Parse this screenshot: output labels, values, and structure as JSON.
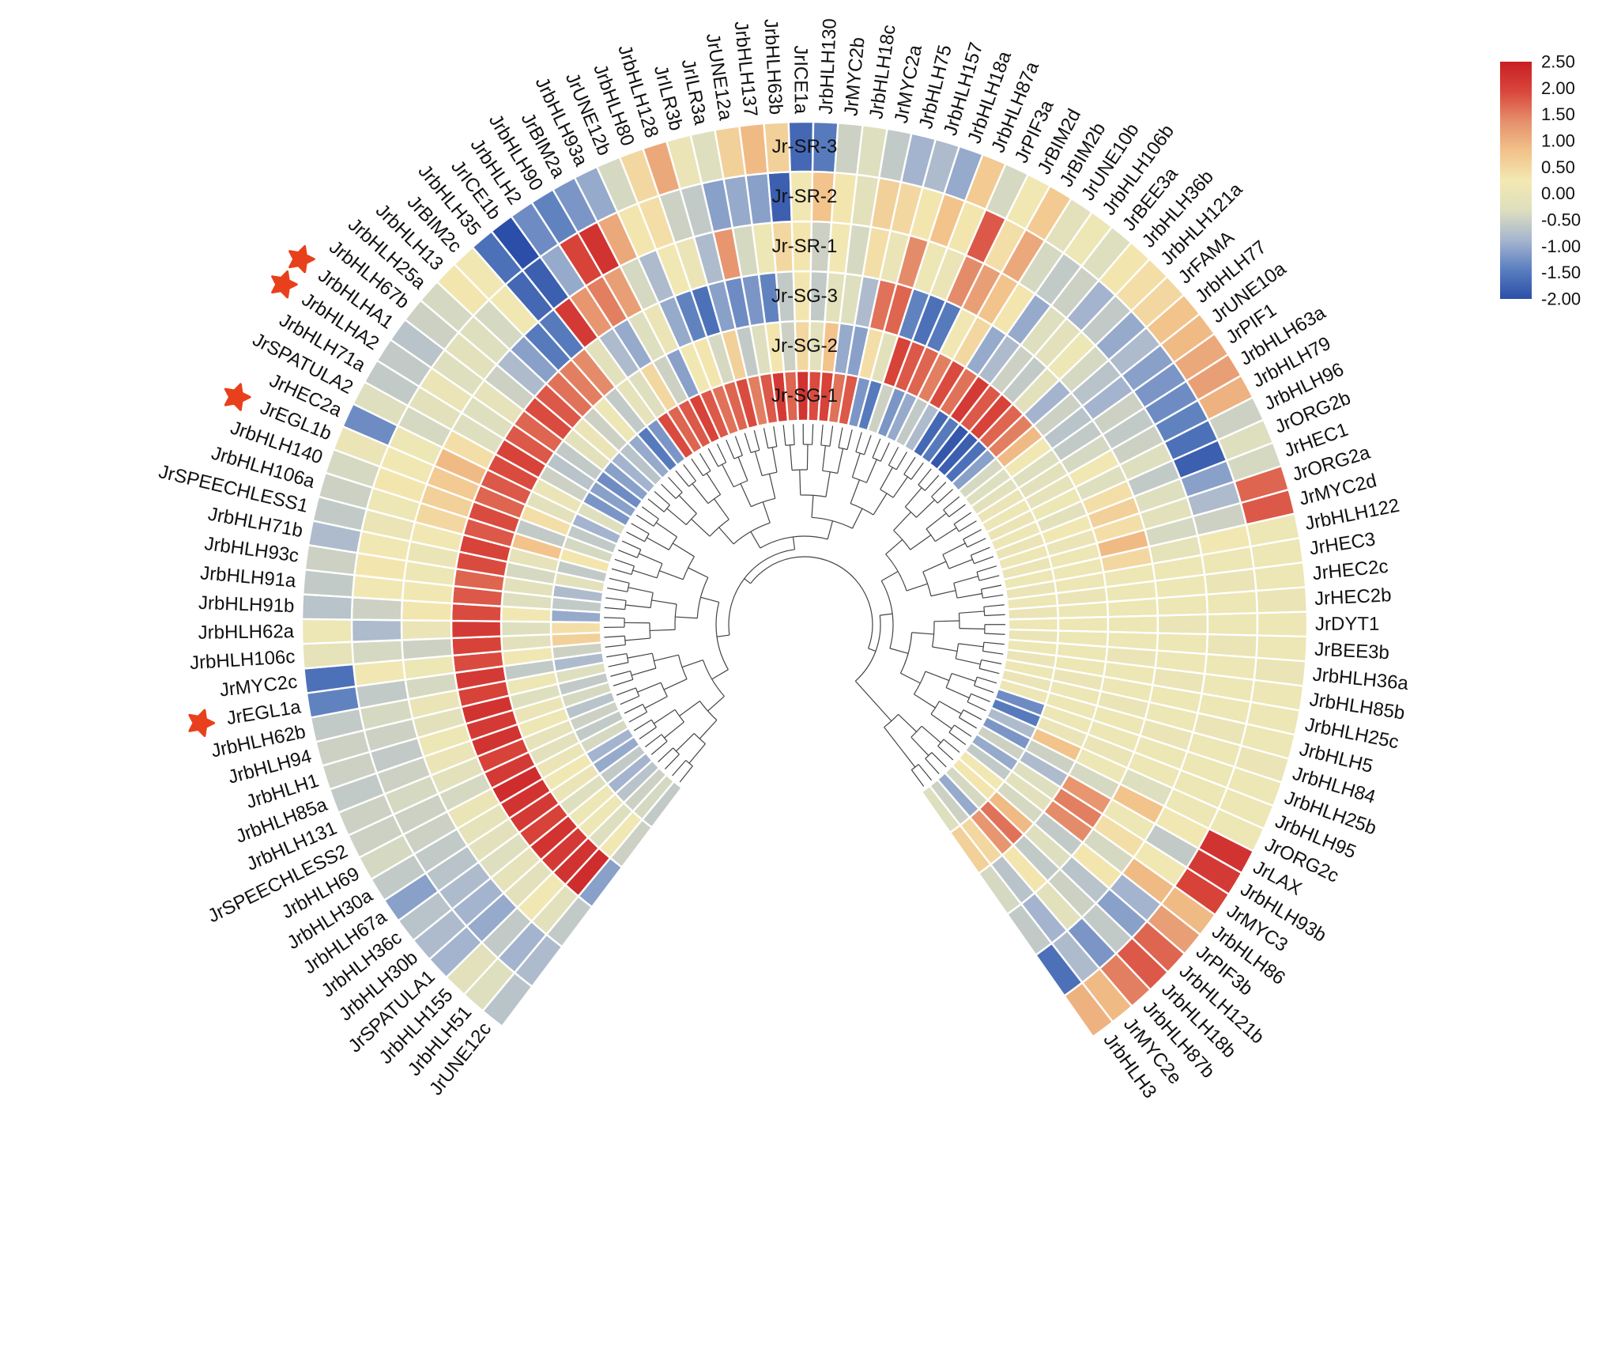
{
  "chart_data": {
    "type": "heatmap",
    "layout": "circular",
    "samples_inner_to_outer": [
      "Jr-SG-1",
      "Jr-SG-2",
      "Jr-SG-3",
      "Jr-SR-1",
      "Jr-SR-2",
      "Jr-SR-3"
    ],
    "colorbar": {
      "min": -2.0,
      "max": 2.5,
      "ticks": [
        "2.50",
        "2.00",
        "1.50",
        "1.00",
        "0.50",
        "0.00",
        "-0.50",
        "-1.00",
        "-1.50",
        "-2.00"
      ],
      "colors": [
        "#2b4ea8",
        "#5b7fbf",
        "#a7b6cf",
        "#dedfbe",
        "#f3e8b2",
        "#f2c28a",
        "#e58f6c",
        "#d9463c",
        "#c81e24"
      ]
    },
    "marked_genes": [
      "JrEGL1a",
      "JrEGL1b",
      "JrbHLHA1",
      "JrbHLHA2"
    ],
    "genes": [
      {
        "name": "JrUNE12c",
        "values": [
          -0.6,
          -0.5,
          -1.1,
          -0.6,
          -0.8,
          -0.7
        ]
      },
      {
        "name": "JrbHLH51",
        "values": [
          -0.4,
          0.2,
          2.3,
          -0.2,
          -0.9,
          -0.3
        ]
      },
      {
        "name": "JrbHLH155",
        "values": [
          -0.5,
          -0.3,
          2.2,
          0.2,
          -0.6,
          -0.2
        ]
      },
      {
        "name": "JrSPATULA1",
        "values": [
          -0.7,
          0.1,
          2.1,
          -0.2,
          -1.0,
          -0.9
        ]
      },
      {
        "name": "JrbHLH30b",
        "values": [
          -0.9,
          0.1,
          2.2,
          -0.1,
          -0.9,
          -0.8
        ]
      },
      {
        "name": "JrbHLH36c",
        "values": [
          -0.6,
          -0.3,
          2.0,
          -0.3,
          -0.8,
          -0.7
        ]
      },
      {
        "name": "JrbHLH67a",
        "values": [
          -1.0,
          0.0,
          2.1,
          -0.2,
          -0.7,
          -1.1
        ]
      },
      {
        "name": "JrbHLH30a",
        "values": [
          -0.9,
          0.2,
          2.2,
          -0.1,
          -0.6,
          -0.6
        ]
      },
      {
        "name": "JrbHLH69",
        "values": [
          -0.4,
          0.0,
          2.3,
          0.0,
          -0.5,
          -0.4
        ]
      },
      {
        "name": "JrSPEECHLESS2",
        "values": [
          -0.6,
          -0.2,
          2.1,
          -0.4,
          -0.5,
          -0.5
        ]
      },
      {
        "name": "JrbHLH131",
        "values": [
          -0.5,
          -0.1,
          2.0,
          -0.2,
          -0.4,
          -0.5
        ]
      },
      {
        "name": "JrbHLH85a",
        "values": [
          -0.7,
          0.1,
          2.2,
          0.0,
          -0.5,
          -0.6
        ]
      },
      {
        "name": "JrbHLH1",
        "values": [
          -0.4,
          0.0,
          2.1,
          0.1,
          -0.6,
          -0.5
        ]
      },
      {
        "name": "JrbHLH94",
        "values": [
          -0.6,
          -0.3,
          2.2,
          -0.2,
          -0.5,
          -0.5
        ]
      },
      {
        "name": "JrbHLH62b",
        "values": [
          -0.3,
          0.1,
          2.0,
          0.0,
          -0.4,
          -0.6
        ]
      },
      {
        "name": "JrEGL1a",
        "values": [
          -0.8,
          -0.6,
          2.1,
          -0.4,
          -0.6,
          -1.4
        ]
      },
      {
        "name": "JrMYC2c",
        "values": [
          -0.5,
          0.2,
          1.9,
          0.1,
          0.2,
          -1.6
        ]
      },
      {
        "name": "JrbHLH106c",
        "values": [
          0.6,
          -0.2,
          2.0,
          -0.5,
          -0.4,
          -0.1
        ]
      },
      {
        "name": "JrbHLH62a",
        "values": [
          0.4,
          -0.3,
          2.1,
          0.0,
          -0.8,
          0.1
        ]
      },
      {
        "name": "JrbHLH91b",
        "values": [
          -1.0,
          0.2,
          1.9,
          0.3,
          -0.5,
          -0.7
        ]
      },
      {
        "name": "JrbHLH91a",
        "values": [
          -0.6,
          -0.3,
          1.8,
          0.2,
          0.2,
          -0.6
        ]
      },
      {
        "name": "JrbHLH93c",
        "values": [
          -0.8,
          -0.2,
          1.7,
          0.1,
          0.3,
          -0.5
        ]
      },
      {
        "name": "JrbHLH71b",
        "values": [
          -0.2,
          -0.4,
          1.9,
          0.0,
          0.2,
          -0.8
        ]
      },
      {
        "name": "JrSPEECHLESS1",
        "values": [
          -0.6,
          -0.1,
          2.0,
          0.2,
          0.0,
          -0.6
        ]
      },
      {
        "name": "JrbHLH106a",
        "values": [
          0.3,
          0.8,
          1.8,
          0.5,
          0.1,
          -0.5
        ]
      },
      {
        "name": "JrbHLH140",
        "values": [
          -0.4,
          -0.6,
          1.9,
          0.6,
          0.3,
          -0.4
        ]
      },
      {
        "name": "JrEGL1b",
        "values": [
          -0.6,
          0.4,
          1.7,
          0.7,
          0.2,
          0.0
        ]
      },
      {
        "name": "JrHEC2a",
        "values": [
          -0.9,
          -0.2,
          1.8,
          0.9,
          0.1,
          -1.3
        ]
      },
      {
        "name": "JrSPATULA2",
        "values": [
          -0.3,
          0.0,
          1.9,
          0.4,
          -0.4,
          -0.3
        ]
      },
      {
        "name": "JrbHLH71a",
        "values": [
          -1.2,
          -0.5,
          2.0,
          -0.3,
          -0.2,
          -0.6
        ]
      },
      {
        "name": "JrbHLHA2",
        "values": [
          -1.1,
          -0.7,
          1.8,
          -0.3,
          0.0,
          -0.6
        ]
      },
      {
        "name": "JrbHLHA1",
        "values": [
          -1.3,
          -0.6,
          1.7,
          -0.1,
          -0.3,
          -0.7
        ]
      },
      {
        "name": "JrbHLH67b",
        "values": [
          -1.1,
          -0.2,
          1.9,
          -0.5,
          -0.2,
          -0.5
        ]
      },
      {
        "name": "JrbHLH25a",
        "values": [
          -0.9,
          0.0,
          1.8,
          -0.8,
          -0.3,
          -0.4
        ]
      },
      {
        "name": "JrbHLH13",
        "values": [
          -0.7,
          -0.5,
          1.6,
          -1.1,
          -0.4,
          0.3
        ]
      },
      {
        "name": "JrBIM2c",
        "values": [
          -1.0,
          0.1,
          1.5,
          -1.5,
          0.2,
          0.2
        ]
      },
      {
        "name": "JrbHLH35",
        "values": [
          -1.5,
          -0.6,
          1.4,
          -1.5,
          -1.7,
          -1.6
        ]
      },
      {
        "name": "JrICE1b",
        "values": [
          -1.2,
          -0.1,
          -0.2,
          2.1,
          -1.8,
          -2.0
        ]
      },
      {
        "name": "JrbHLH2",
        "values": [
          1.9,
          -0.3,
          -0.8,
          1.3,
          -1.0,
          -1.3
        ]
      },
      {
        "name": "JrbHLH90",
        "values": [
          1.7,
          0.5,
          -1.0,
          1.5,
          2.0,
          -1.4
        ]
      },
      {
        "name": "JrBIM2a",
        "values": [
          1.8,
          -0.5,
          -0.3,
          1.2,
          2.2,
          -1.2
        ]
      },
      {
        "name": "JrbHLH93a",
        "values": [
          2.0,
          -1.1,
          0.0,
          -0.4,
          1.1,
          -1.0
        ]
      },
      {
        "name": "JrUNE12b",
        "values": [
          1.8,
          0.2,
          -1.0,
          -0.8,
          0.3,
          -0.4
        ]
      },
      {
        "name": "JrbHLH80",
        "values": [
          1.6,
          0.3,
          -1.4,
          0.2,
          0.4,
          0.5
        ]
      },
      {
        "name": "JrbHLH128",
        "values": [
          1.7,
          -0.4,
          -1.6,
          0.0,
          -0.5,
          1.1
        ]
      },
      {
        "name": "JrILR3b",
        "values": [
          1.9,
          0.6,
          -1.1,
          -0.8,
          -0.6,
          0.0
        ]
      },
      {
        "name": "JrILR3a",
        "values": [
          1.5,
          -0.6,
          -1.3,
          1.3,
          -1.1,
          -0.3
        ]
      },
      {
        "name": "JrUNE12a",
        "values": [
          1.8,
          -0.3,
          -1.2,
          -0.4,
          -1.0,
          0.6
        ]
      },
      {
        "name": "JrbHLH137",
        "values": [
          2.1,
          0.3,
          -1.4,
          0.1,
          -1.1,
          0.9
        ]
      },
      {
        "name": "JrbHLH63b",
        "values": [
          1.7,
          -0.5,
          -0.6,
          0.5,
          -1.8,
          0.6
        ]
      },
      {
        "name": "JrICE1a",
        "values": [
          2.2,
          0.5,
          0.3,
          0.3,
          0.2,
          -1.7
        ]
      },
      {
        "name": "JrbHLH130",
        "values": [
          1.9,
          -0.2,
          -0.6,
          -0.5,
          0.8,
          -1.5
        ]
      },
      {
        "name": "JrMYC2b",
        "values": [
          2.0,
          0.8,
          -0.2,
          0.2,
          0.3,
          -0.5
        ]
      },
      {
        "name": "JrbHLH18c",
        "values": [
          1.6,
          -1.0,
          -0.3,
          -0.4,
          -0.2,
          -0.3
        ]
      },
      {
        "name": "JrMYC2a",
        "values": [
          1.8,
          -1.1,
          -0.8,
          0.4,
          0.6,
          -0.6
        ]
      },
      {
        "name": "JrbHLH75",
        "values": [
          -1.2,
          0.4,
          1.6,
          0.0,
          0.5,
          -0.9
        ]
      },
      {
        "name": "JrbHLH157",
        "values": [
          -1.5,
          -0.2,
          1.7,
          1.4,
          0.3,
          -0.8
        ]
      },
      {
        "name": "JrbHLH18a",
        "values": [
          -0.5,
          2.0,
          -1.4,
          0.1,
          0.8,
          -1.0
        ]
      },
      {
        "name": "JrbHLH87a",
        "values": [
          -1.2,
          1.8,
          -1.6,
          0.0,
          0.3,
          0.7
        ]
      },
      {
        "name": "JrPIF3a",
        "values": [
          -1.0,
          1.7,
          -1.5,
          1.4,
          1.8,
          -0.4
        ]
      },
      {
        "name": "JrBIM2d",
        "values": [
          -0.6,
          1.5,
          0.2,
          1.2,
          0.4,
          0.2
        ]
      },
      {
        "name": "JrBIM2b",
        "values": [
          -0.8,
          1.9,
          0.5,
          0.8,
          1.1,
          0.7
        ]
      },
      {
        "name": "JrUNE10b",
        "values": [
          -1.7,
          1.6,
          -1.0,
          0.3,
          -0.4,
          -0.2
        ]
      },
      {
        "name": "JrbHLH106b",
        "values": [
          -1.5,
          2.1,
          -0.8,
          -1.0,
          -0.6,
          0.1
        ]
      },
      {
        "name": "JrBEE3a",
        "values": [
          -1.9,
          1.8,
          -0.5,
          -0.3,
          -0.5,
          -0.3
        ]
      },
      {
        "name": "JrbHLH36b",
        "values": [
          -1.8,
          2.0,
          -0.6,
          -0.2,
          -0.9,
          0.3
        ]
      },
      {
        "name": "JrbHLH121a",
        "values": [
          -1.6,
          1.7,
          -0.2,
          0.1,
          -0.6,
          0.4
        ]
      },
      {
        "name": "JrFAMA",
        "values": [
          -1.1,
          1.5,
          -0.9,
          -0.4,
          -1.0,
          0.5
        ]
      },
      {
        "name": "JrbHLH77",
        "values": [
          -0.4,
          0.9,
          -0.5,
          -0.7,
          -0.8,
          0.8
        ]
      },
      {
        "name": "JrUNE10a",
        "values": [
          -0.3,
          0.2,
          -0.7,
          -0.9,
          -1.1,
          0.9
        ]
      },
      {
        "name": "JrPIF1",
        "values": [
          -0.2,
          -0.3,
          -0.6,
          -0.5,
          -1.2,
          1.1
        ]
      },
      {
        "name": "JrbHLH63a",
        "values": [
          0.0,
          -0.2,
          -0.4,
          -0.6,
          -1.3,
          1.2
        ]
      },
      {
        "name": "JrbHLH79",
        "values": [
          0.1,
          -0.1,
          0.2,
          -0.5,
          -1.4,
          1.0
        ]
      },
      {
        "name": "JrbHLH96",
        "values": [
          0.0,
          0.1,
          -0.3,
          -0.3,
          -1.6,
          -0.5
        ]
      },
      {
        "name": "JrORG2b",
        "values": [
          0.1,
          -0.2,
          0.4,
          -0.6,
          -1.8,
          -0.3
        ]
      },
      {
        "name": "JrHEC1",
        "values": [
          0.0,
          0.2,
          0.6,
          -0.3,
          -1.1,
          -0.4
        ]
      },
      {
        "name": "JrORG2a",
        "values": [
          0.1,
          0.0,
          0.4,
          -0.2,
          -0.8,
          1.7
        ]
      },
      {
        "name": "JrMYC2d",
        "values": [
          0.0,
          0.1,
          0.9,
          -0.4,
          -0.5,
          1.8
        ]
      },
      {
        "name": "JrbHLH122",
        "values": [
          0.1,
          0.1,
          0.5,
          -0.1,
          0.2,
          0.1
        ]
      },
      {
        "name": "JrHEC3",
        "values": [
          0.0,
          0.1,
          0.1,
          0.1,
          0.1,
          0.1
        ]
      },
      {
        "name": "JrHEC2c",
        "values": [
          0.1,
          0.0,
          0.1,
          0.1,
          0.0,
          0.1
        ]
      },
      {
        "name": "JrHEC2b",
        "values": [
          0.0,
          0.1,
          0.1,
          0.1,
          0.1,
          0.0
        ]
      },
      {
        "name": "JrDYT1",
        "values": [
          0.1,
          0.1,
          0.1,
          0.0,
          0.1,
          0.1
        ]
      },
      {
        "name": "JrBEE3b",
        "values": [
          0.0,
          0.1,
          0.1,
          0.1,
          0.0,
          0.1
        ]
      },
      {
        "name": "JrbHLH36a",
        "values": [
          0.1,
          0.1,
          0.0,
          0.1,
          0.1,
          0.0
        ]
      },
      {
        "name": "JrbHLH85b",
        "values": [
          0.0,
          0.1,
          0.1,
          0.0,
          0.1,
          0.1
        ]
      },
      {
        "name": "JrbHLH25c",
        "values": [
          0.1,
          0.0,
          0.1,
          0.1,
          0.1,
          0.1
        ]
      },
      {
        "name": "JrbHLH5",
        "values": [
          0.0,
          0.1,
          0.0,
          0.1,
          0.0,
          0.1
        ]
      },
      {
        "name": "JrbHLH84",
        "values": [
          0.1,
          0.1,
          0.1,
          0.0,
          0.1,
          0.0
        ]
      },
      {
        "name": "JrbHLH25b",
        "values": [
          -1.3,
          0.1,
          0.1,
          0.1,
          0.1,
          0.1
        ]
      },
      {
        "name": "JrbHLH95",
        "values": [
          -1.5,
          0.0,
          0.0,
          0.1,
          0.1,
          0.1
        ]
      },
      {
        "name": "JrORG2c",
        "values": [
          -0.8,
          0.8,
          0.1,
          -0.3,
          0.1,
          0.1
        ]
      },
      {
        "name": "JrLAX",
        "values": [
          -1.2,
          -0.5,
          -0.4,
          0.8,
          0.2,
          2.2
        ]
      },
      {
        "name": "JrbHLH93b",
        "values": [
          -0.5,
          -0.8,
          1.3,
          0.1,
          -0.6,
          2.1
        ]
      },
      {
        "name": "JrMYC3",
        "values": [
          -1.0,
          -0.3,
          1.5,
          0.4,
          0.2,
          2.0
        ]
      },
      {
        "name": "JrbHLH86",
        "values": [
          -0.6,
          -0.2,
          1.4,
          -0.4,
          0.9,
          0.9
        ]
      },
      {
        "name": "JrPIF3b",
        "values": [
          0.2,
          -0.4,
          -0.6,
          0.3,
          -0.9,
          1.2
        ]
      },
      {
        "name": "JrbHLH121b",
        "values": [
          0.3,
          0.9,
          -0.3,
          -0.7,
          -1.1,
          1.7
        ]
      },
      {
        "name": "JrbHLH18b",
        "values": [
          -0.4,
          1.6,
          -0.6,
          -0.5,
          -0.6,
          1.8
        ]
      },
      {
        "name": "JrbHLH87b",
        "values": [
          -1.0,
          1.3,
          0.3,
          -0.2,
          -1.2,
          1.5
        ]
      },
      {
        "name": "JrMYC2e",
        "values": [
          -0.5,
          0.5,
          -0.7,
          -0.9,
          -0.8,
          0.9
        ]
      },
      {
        "name": "JrbHLH3",
        "values": [
          -0.3,
          0.6,
          -0.4,
          -0.6,
          -1.6,
          1.0
        ]
      }
    ]
  }
}
